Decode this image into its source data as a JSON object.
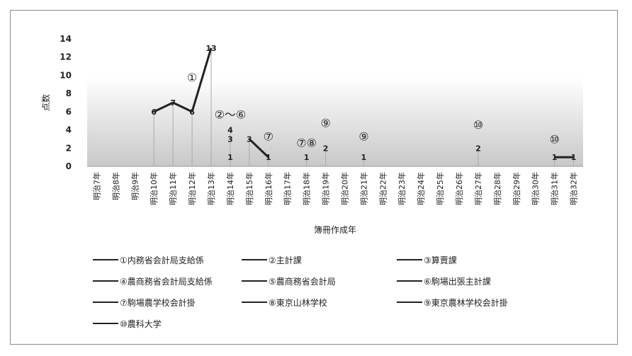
{
  "chart_data": {
    "type": "line",
    "title": "",
    "ylabel": "点数",
    "xlabel": "簿冊作成年",
    "ylim": [
      0,
      14
    ],
    "yticks": [
      0,
      2,
      4,
      6,
      8,
      10,
      12,
      14
    ],
    "grid": false,
    "legend_position": "bottom",
    "categories": [
      "明治7年",
      "明治8年",
      "明治9年",
      "明治10年",
      "明治11年",
      "明治12年",
      "明治13年",
      "明治14年",
      "明治15年",
      "明治16年",
      "明治17年",
      "明治18年",
      "明治19年",
      "明治20年",
      "明治21年",
      "明治22年",
      "明治23年",
      "明治24年",
      "明治25年",
      "明治26年",
      "明治27年",
      "明治28年",
      "明治29年",
      "明治30年",
      "明治31年",
      "明治32年"
    ],
    "series": [
      {
        "name": "①内務省会計局支給係",
        "points": [
          [
            "明治10年",
            6
          ],
          [
            "明治11年",
            7
          ],
          [
            "明治12年",
            6
          ],
          [
            "明治13年",
            13
          ]
        ]
      },
      {
        "name": "②主計課",
        "points": [
          [
            "明治14年",
            4
          ]
        ]
      },
      {
        "name": "③算賣課",
        "points": [
          [
            "明治14年",
            3
          ]
        ]
      },
      {
        "name": "④農商務省会計局支給係",
        "points": []
      },
      {
        "name": "⑤農商務省会計局",
        "points": []
      },
      {
        "name": "⑥駒場出張主計課",
        "points": [
          [
            "明治14年",
            1
          ]
        ]
      },
      {
        "name": "⑦駒場農学校会計掛",
        "points": [
          [
            "明治15年",
            3
          ],
          [
            "明治16年",
            1
          ]
        ]
      },
      {
        "name": "⑧東京山林学校",
        "points": [
          [
            "明治18年",
            1
          ]
        ]
      },
      {
        "name": "⑨東京農林学校会計掛",
        "points": [
          [
            "明治19年",
            2
          ],
          [
            "明治21年",
            1
          ]
        ]
      },
      {
        "name": "⑩農科大学",
        "points": [
          [
            "明治27年",
            2
          ],
          [
            "明治31年",
            1
          ],
          [
            "明治32年",
            1
          ]
        ]
      }
    ],
    "data_labels": [
      {
        "x": "明治10年",
        "y": 6,
        "text": "6"
      },
      {
        "x": "明治11年",
        "y": 7,
        "text": "7"
      },
      {
        "x": "明治12年",
        "y": 6,
        "text": "6"
      },
      {
        "x": "明治13年",
        "y": 13,
        "text": "13"
      },
      {
        "x": "明治14年",
        "y": 4,
        "text": "4"
      },
      {
        "x": "明治14年",
        "y": 3,
        "text": "3"
      },
      {
        "x": "明治14年",
        "y": 1,
        "text": "1"
      },
      {
        "x": "明治15年",
        "y": 3,
        "text": "3"
      },
      {
        "x": "明治16年",
        "y": 1,
        "text": "1"
      },
      {
        "x": "明治18年",
        "y": 1,
        "text": "1"
      },
      {
        "x": "明治19年",
        "y": 2,
        "text": "2"
      },
      {
        "x": "明治21年",
        "y": 1,
        "text": "1"
      },
      {
        "x": "明治27年",
        "y": 2,
        "text": "2"
      },
      {
        "x": "明治31年",
        "y": 1,
        "text": "1"
      },
      {
        "x": "明治32年",
        "y": 1,
        "text": "1"
      }
    ],
    "annotations": [
      {
        "text": "①",
        "x": "明治12年",
        "y": 9.8
      },
      {
        "text": "②〜⑥",
        "x": "明治14年",
        "y": 5.7
      },
      {
        "text": "⑦",
        "x": "明治16年",
        "y": 3.3
      },
      {
        "text": "⑦⑧",
        "x": "明治18年",
        "y": 2.6
      },
      {
        "text": "⑨",
        "x": "明治19年",
        "y": 4.8
      },
      {
        "text": "⑨",
        "x": "明治21年",
        "y": 3.3
      },
      {
        "text": "⑩",
        "x": "明治27年",
        "y": 4.6
      },
      {
        "text": "⑩",
        "x": "明治31年",
        "y": 3.0
      }
    ],
    "colors": {
      "line": "#222222",
      "drop_line": "#aaaaaa",
      "band_top": "#ffffff",
      "band_bottom": "#c8c8c8"
    }
  }
}
